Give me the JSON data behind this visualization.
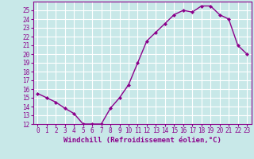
{
  "x": [
    0,
    1,
    2,
    3,
    4,
    5,
    6,
    7,
    8,
    9,
    10,
    11,
    12,
    13,
    14,
    15,
    16,
    17,
    18,
    19,
    20,
    21,
    22,
    23
  ],
  "y": [
    15.5,
    15.0,
    14.5,
    13.8,
    13.2,
    12.0,
    12.0,
    12.0,
    13.8,
    15.0,
    16.5,
    19.0,
    21.5,
    22.5,
    23.5,
    24.5,
    25.0,
    24.8,
    25.5,
    25.5,
    24.5,
    24.0,
    21.0,
    20.0
  ],
  "line_color": "#8B008B",
  "marker": "D",
  "marker_size": 2,
  "xlabel": "Windchill (Refroidissement éolien,°C)",
  "xlabel_fontsize": 6.5,
  "ylim": [
    12,
    26
  ],
  "xlim": [
    -0.5,
    23.5
  ],
  "yticks": [
    12,
    13,
    14,
    15,
    16,
    17,
    18,
    19,
    20,
    21,
    22,
    23,
    24,
    25
  ],
  "xticks": [
    0,
    1,
    2,
    3,
    4,
    5,
    6,
    7,
    8,
    9,
    10,
    11,
    12,
    13,
    14,
    15,
    16,
    17,
    18,
    19,
    20,
    21,
    22,
    23
  ],
  "bg_color": "#c8e8e8",
  "grid_color": "#ffffff",
  "tick_fontsize": 5.5,
  "line_width": 1.0,
  "border_color": "#8B008B"
}
